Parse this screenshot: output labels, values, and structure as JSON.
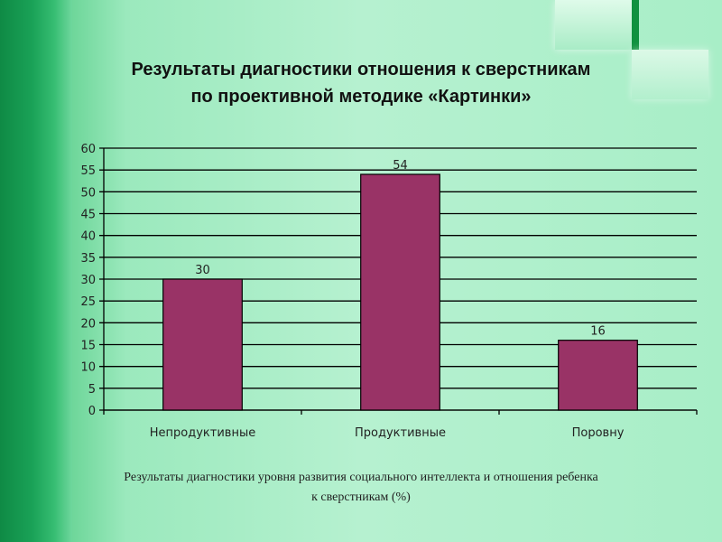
{
  "title": {
    "line1": "Результаты диагностики отношения к сверстникам",
    "line2": "по проективной методике «Картинки»"
  },
  "caption": {
    "line1": "Результаты диагностики уровня развития социального интеллекта и отношения ребенка",
    "line2": "к сверстникам (%)"
  },
  "colors": {
    "bar": "#993366",
    "grid": "#000000"
  },
  "chart_data": {
    "type": "bar",
    "categories": [
      "Непродуктивные",
      "Продуктивные",
      "Поровну"
    ],
    "values": [
      30,
      54,
      16
    ],
    "ylim": [
      0,
      60
    ],
    "ytick_step": 5,
    "grid": true,
    "data_labels": true
  }
}
